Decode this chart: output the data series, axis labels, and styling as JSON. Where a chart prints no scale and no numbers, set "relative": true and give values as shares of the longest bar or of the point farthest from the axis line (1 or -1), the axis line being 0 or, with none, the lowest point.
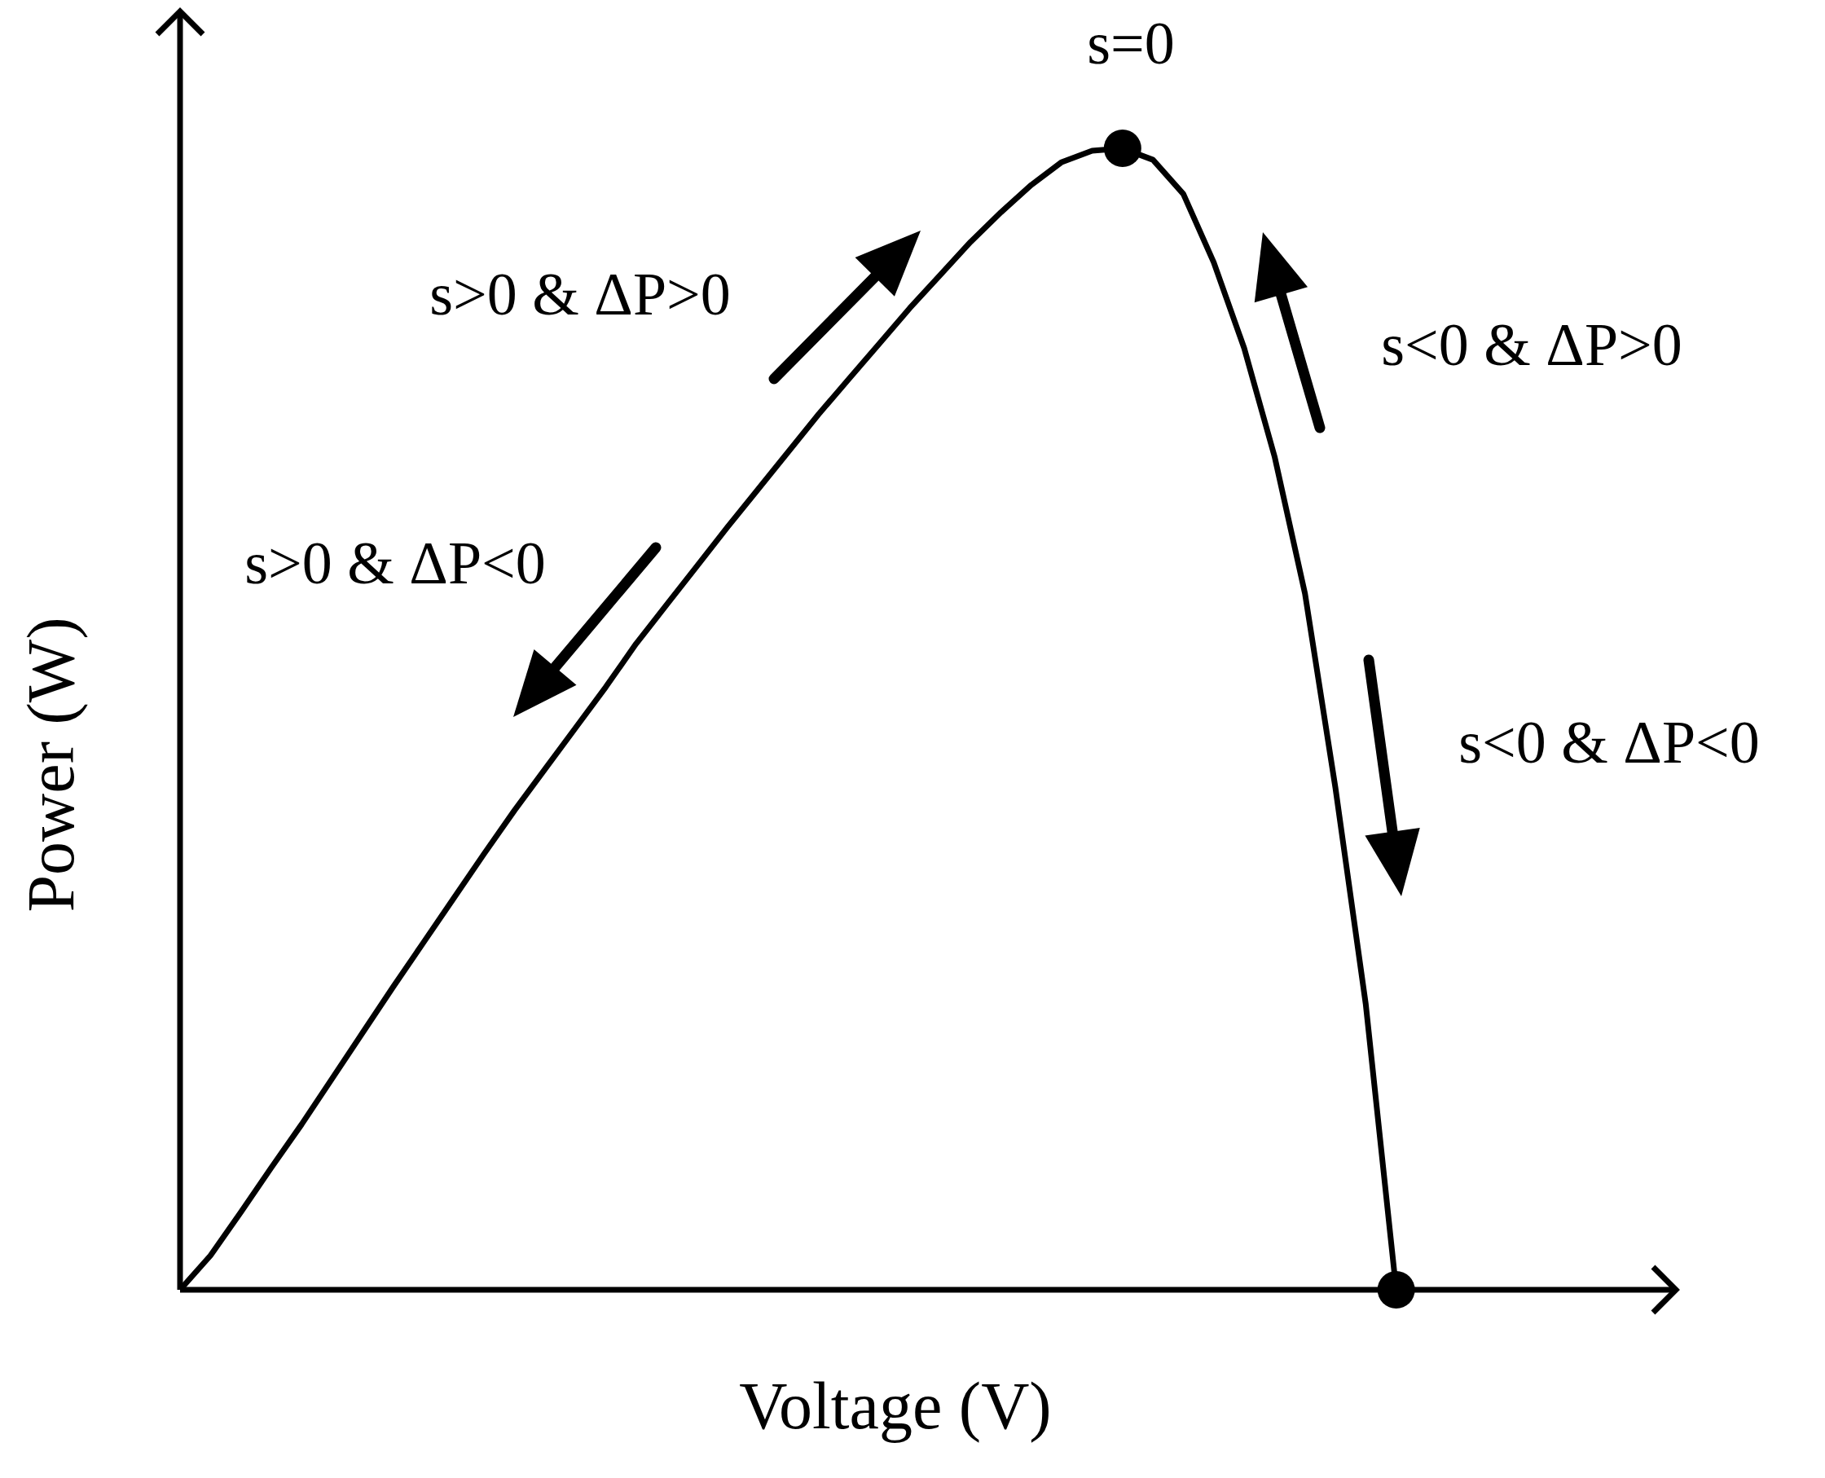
{
  "chart_data": {
    "type": "line",
    "xlabel": "Voltage (V)",
    "ylabel": "Power (W)",
    "relative": true,
    "grid": false,
    "legend": false,
    "categories": [
      null,
      null,
      null,
      null,
      null,
      null,
      null,
      null,
      null,
      null,
      null,
      null,
      null,
      null,
      null,
      null,
      null,
      null,
      null,
      null,
      null,
      null,
      null,
      null,
      null,
      null,
      null,
      null,
      null,
      null,
      null,
      null,
      null,
      null,
      null,
      null,
      null,
      null,
      null,
      null,
      null
    ],
    "series": [
      {
        "color": "#000000",
        "values": [
          0,
          0.03,
          0.068,
          0.107,
          0.145,
          0.185,
          0.225,
          0.265,
          0.304,
          0.343,
          0.382,
          0.42,
          0.456,
          0.492,
          0.528,
          0.566,
          0.6,
          0.634,
          0.668,
          0.701,
          0.734,
          0.767,
          0.798,
          0.829,
          0.86,
          0.889,
          0.918,
          0.944,
          0.968,
          0.988,
          0.998,
          1,
          0.99,
          0.96,
          0.9,
          0.825,
          0.73,
          0.61,
          0.44,
          0.25,
          0
        ]
      }
    ],
    "annotations": [
      "s=0",
      "s>0 & ΔP>0",
      "s<0 & ΔP>0",
      "s>0 & ΔP<0",
      "s<0 & ΔP<0"
    ]
  }
}
